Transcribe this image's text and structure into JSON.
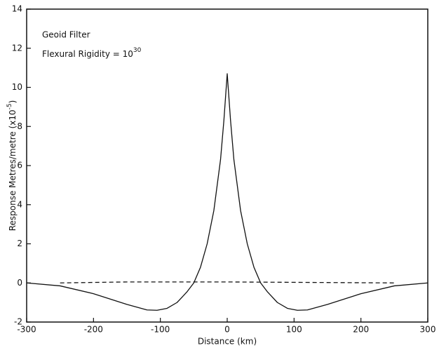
{
  "chart_data": {
    "type": "line",
    "annotations": [
      {
        "text": "Geoid Filter"
      },
      {
        "text": "Flexural Rigidity = 10",
        "superscript": "30"
      }
    ],
    "xlabel": "Distance (km)",
    "ylabel": {
      "text": "Response Metres/metre (x10",
      "superscript": "-5",
      "suffix": ")"
    },
    "xlim": [
      -300,
      300
    ],
    "ylim": [
      -2,
      14
    ],
    "xticks": [
      -300,
      -200,
      -100,
      0,
      100,
      200,
      300
    ],
    "yticks": [
      -2,
      0,
      2,
      4,
      6,
      8,
      10,
      12,
      14
    ],
    "grid": false,
    "series": [
      {
        "color": "#111111",
        "dashed": false,
        "x": [
          -300,
          -250,
          -200,
          -150,
          -120,
          -105,
          -90,
          -75,
          -60,
          -50,
          -40,
          -30,
          -20,
          -10,
          -5,
          0,
          5,
          10,
          20,
          30,
          40,
          50,
          60,
          75,
          90,
          105,
          120,
          150,
          200,
          250,
          300
        ],
        "values": [
          0,
          -0.15,
          -0.55,
          -1.1,
          -1.38,
          -1.4,
          -1.3,
          -1.0,
          -0.45,
          0,
          0.8,
          2.0,
          3.7,
          6.3,
          8.3,
          10.7,
          8.3,
          6.3,
          3.7,
          2.0,
          0.8,
          0,
          -0.45,
          -1.0,
          -1.3,
          -1.4,
          -1.38,
          -1.1,
          -0.55,
          -0.15,
          0
        ]
      },
      {
        "color": "#111111",
        "dashed": true,
        "x": [
          -250,
          -150,
          0,
          150,
          250
        ],
        "values": [
          0,
          0.05,
          0.05,
          0.02,
          0
        ]
      }
    ]
  }
}
